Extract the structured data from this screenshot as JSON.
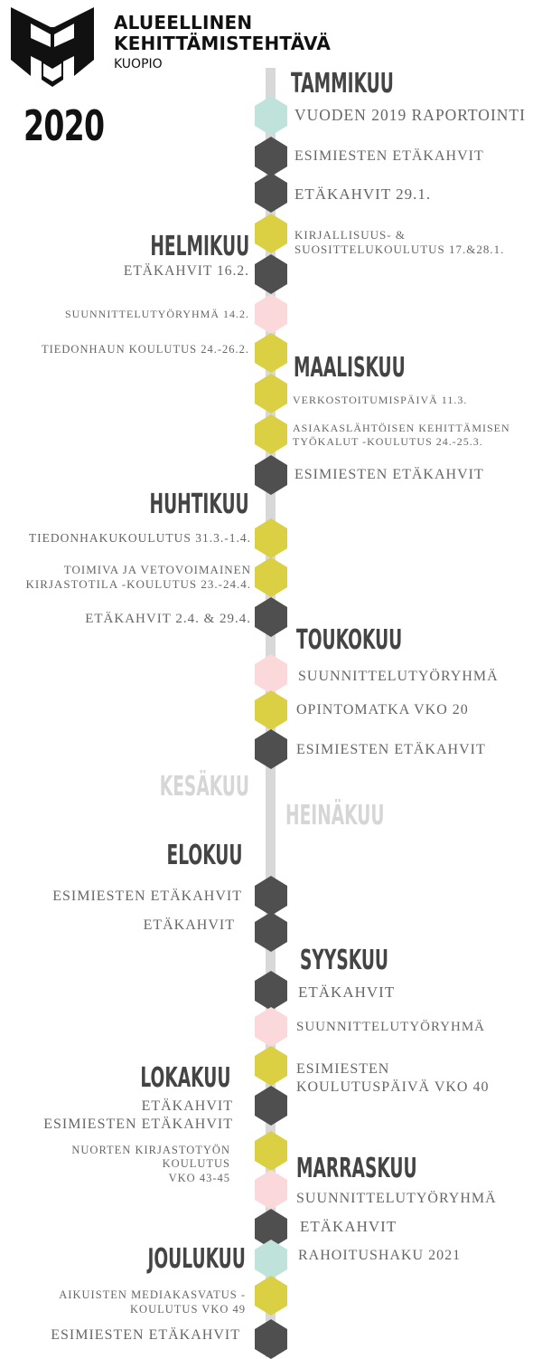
{
  "header": {
    "org_line1": "ALUEELLINEN",
    "org_line2": "KEHITTÄMISTEHTÄVÄ",
    "city": "KUOPIO",
    "year": "2020",
    "logo_icon": "stylized-m-book-logo"
  },
  "colors": {
    "teal": "#bfe3da",
    "dark": "#4f4f4f",
    "yellow": "#dbd043",
    "pink": "#fbd9db",
    "line": "#d8d8d8",
    "month_text": "#444444",
    "month_inactive": "#d6d6d6",
    "event_text": "#666666"
  },
  "months": [
    {
      "label": "TAMMIKUU",
      "side": "right",
      "active": true
    },
    {
      "label": "HELMIKUU",
      "side": "left",
      "active": true
    },
    {
      "label": "MAALISKUU",
      "side": "right",
      "active": true
    },
    {
      "label": "HUHTIKUU",
      "side": "left",
      "active": true
    },
    {
      "label": "TOUKOKUU",
      "side": "right",
      "active": true
    },
    {
      "label": "KESÄKUU",
      "side": "left",
      "active": false
    },
    {
      "label": "HEINÄKUU",
      "side": "right",
      "active": false
    },
    {
      "label": "ELOKUU",
      "side": "left",
      "active": true
    },
    {
      "label": "SYYSKUU",
      "side": "right",
      "active": true
    },
    {
      "label": "LOKAKUU",
      "side": "left",
      "active": true
    },
    {
      "label": "MARRASKUU",
      "side": "right",
      "active": true
    },
    {
      "label": "JOULUKUU",
      "side": "left",
      "active": true
    }
  ],
  "markers": [
    "teal",
    "dark",
    "dark",
    "yellow",
    "dark",
    "pink",
    "yellow",
    "yellow",
    "yellow",
    "dark",
    "yellow",
    "yellow",
    "dark",
    "pink",
    "yellow",
    "dark",
    "dark",
    "dark",
    "dark",
    "pink",
    "yellow",
    "dark",
    "yellow",
    "pink",
    "dark",
    "teal",
    "yellow",
    "dark"
  ],
  "events": [
    {
      "side": "right",
      "lines": [
        "VUODEN 2019 RAPORTOINTI"
      ]
    },
    {
      "side": "right",
      "lines": [
        "ESIMIESTEN ETÄKAHVIT"
      ]
    },
    {
      "side": "right",
      "lines": [
        "ETÄKAHVIT 29.1."
      ]
    },
    {
      "side": "right",
      "lines": [
        "KIRJALLISUUS- &",
        "SUOSITTELUKOULUTUS 17.&28.1."
      ]
    },
    {
      "side": "left",
      "lines": [
        "ETÄKAHVIT 16.2."
      ]
    },
    {
      "side": "left",
      "lines": [
        "SUUNNITTELUTYÖRYHMÄ 14.2."
      ]
    },
    {
      "side": "left",
      "lines": [
        "TIEDONHAUN KOULUTUS 24.-26.2."
      ]
    },
    {
      "side": "right",
      "lines": [
        "VERKOSTOITUMISPÄIVÄ 11.3."
      ]
    },
    {
      "side": "right",
      "lines": [
        "ASIAKASLÄHTÖISEN KEHITTÄMISEN",
        "TYÖKALUT -KOULUTUS 24.-25.3."
      ]
    },
    {
      "side": "right",
      "lines": [
        "ESIMIESTEN ETÄKAHVIT"
      ]
    },
    {
      "side": "left",
      "lines": [
        "TIEDONHAKUKOULUTUS 31.3.-1.4."
      ]
    },
    {
      "side": "left",
      "lines": [
        "TOIMIVA JA VETOVOIMAINEN",
        "KIRJASTOTILA -KOULUTUS 23.-24.4."
      ]
    },
    {
      "side": "left",
      "lines": [
        "ETÄKAHVIT 2.4. & 29.4."
      ]
    },
    {
      "side": "right",
      "lines": [
        "SUUNNITTELUTYÖRYHMÄ"
      ]
    },
    {
      "side": "right",
      "lines": [
        "OPINTOMATKA VKO 20"
      ]
    },
    {
      "side": "right",
      "lines": [
        "ESIMIESTEN ETÄKAHVIT"
      ]
    },
    {
      "side": "left",
      "lines": [
        "ESIMIESTEN ETÄKAHVIT"
      ]
    },
    {
      "side": "left",
      "lines": [
        "ETÄKAHVIT"
      ]
    },
    {
      "side": "right",
      "lines": [
        "ETÄKAHVIT"
      ]
    },
    {
      "side": "right",
      "lines": [
        "SUUNNITTELUTYÖRYHMÄ"
      ]
    },
    {
      "side": "right",
      "lines": [
        "ESIMIESTEN",
        "KOULUTUSPÄIVÄ VKO 40"
      ]
    },
    {
      "side": "left",
      "lines": [
        "ETÄKAHVIT",
        "ESIMIESTEN ETÄKAHVIT"
      ]
    },
    {
      "side": "left",
      "lines": [
        "NUORTEN KIRJASTOTYÖN",
        "KOULUTUS",
        "VKO 43-45"
      ]
    },
    {
      "side": "right",
      "lines": [
        "SUUNNITTELUTYÖRYHMÄ"
      ]
    },
    {
      "side": "right",
      "lines": [
        "ETÄKAHVIT"
      ]
    },
    {
      "side": "right",
      "lines": [
        "RAHOITUSHAKU 2021"
      ]
    },
    {
      "side": "left",
      "lines": [
        "AIKUISTEN MEDIAKASVATUS -",
        "KOULUTUS VKO 49"
      ]
    },
    {
      "side": "left",
      "lines": [
        "ESIMIESTEN ETÄKAHVIT"
      ]
    }
  ]
}
